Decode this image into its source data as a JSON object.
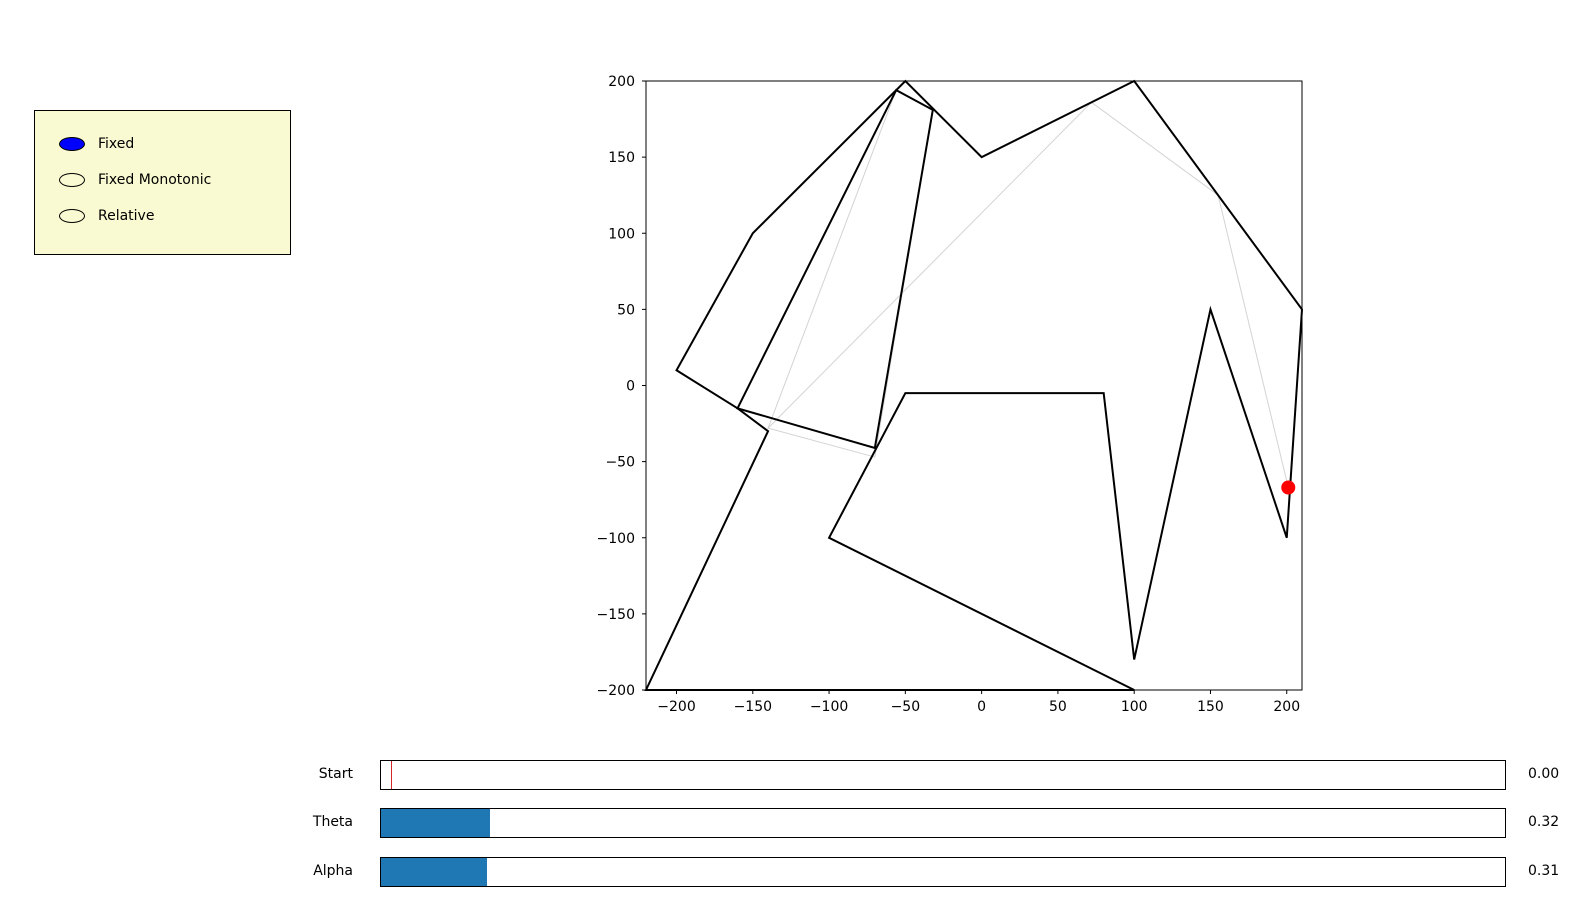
{
  "radio": {
    "options": [
      {
        "label": "Fixed",
        "selected": true
      },
      {
        "label": "Fixed Monotonic",
        "selected": false
      },
      {
        "label": "Relative",
        "selected": false
      }
    ]
  },
  "chart_data": {
    "type": "line",
    "title": "",
    "xlabel": "",
    "ylabel": "",
    "xlim": [
      -220,
      210
    ],
    "ylim": [
      -200,
      200
    ],
    "xticks": [
      -200,
      -150,
      -100,
      -50,
      0,
      50,
      100,
      150,
      200
    ],
    "yticks": [
      -200,
      -150,
      -100,
      -50,
      0,
      50,
      100,
      150,
      200
    ],
    "grid": false,
    "colors": {
      "polygon": "#000000",
      "path": "#d3d3d3",
      "marker": "#ff0000"
    },
    "polygons": [
      {
        "name": "",
        "points": [
          [
            -220,
            -200
          ],
          [
            100,
            -200
          ],
          [
            -100,
            -100
          ],
          [
            -50,
            -5
          ],
          [
            80,
            -5
          ],
          [
            100,
            -180
          ],
          [
            150,
            50
          ],
          [
            200,
            -100
          ],
          [
            210,
            50
          ],
          [
            100,
            200
          ],
          [
            0,
            150
          ],
          [
            -50,
            200
          ],
          [
            -150,
            100
          ],
          [
            -200,
            10
          ],
          [
            -160,
            -15
          ],
          [
            -140,
            -30
          ]
        ]
      },
      {
        "name": "",
        "points": [
          [
            -160,
            -15
          ],
          [
            -56,
            194
          ],
          [
            -32,
            181
          ],
          [
            -70,
            -41
          ]
        ]
      }
    ],
    "path": [
      [
        -140,
        -28
      ],
      [
        -56,
        194
      ],
      [
        -32,
        181
      ],
      [
        -70,
        -47
      ],
      [
        -140,
        -28
      ],
      [
        72,
        186
      ],
      [
        155,
        125
      ],
      [
        201,
        -67
      ]
    ],
    "marker": {
      "x": 201,
      "y": -67
    }
  },
  "sliders": [
    {
      "label": "Start",
      "value": 0.0,
      "display": "0.00",
      "min": 0,
      "max": 1,
      "style": "marker"
    },
    {
      "label": "Theta",
      "value": 0.32,
      "display": "0.32",
      "min": 0,
      "max": 3.3,
      "style": "fill"
    },
    {
      "label": "Alpha",
      "value": 0.31,
      "display": "0.31",
      "min": 0,
      "max": 3.3,
      "style": "fill"
    }
  ]
}
